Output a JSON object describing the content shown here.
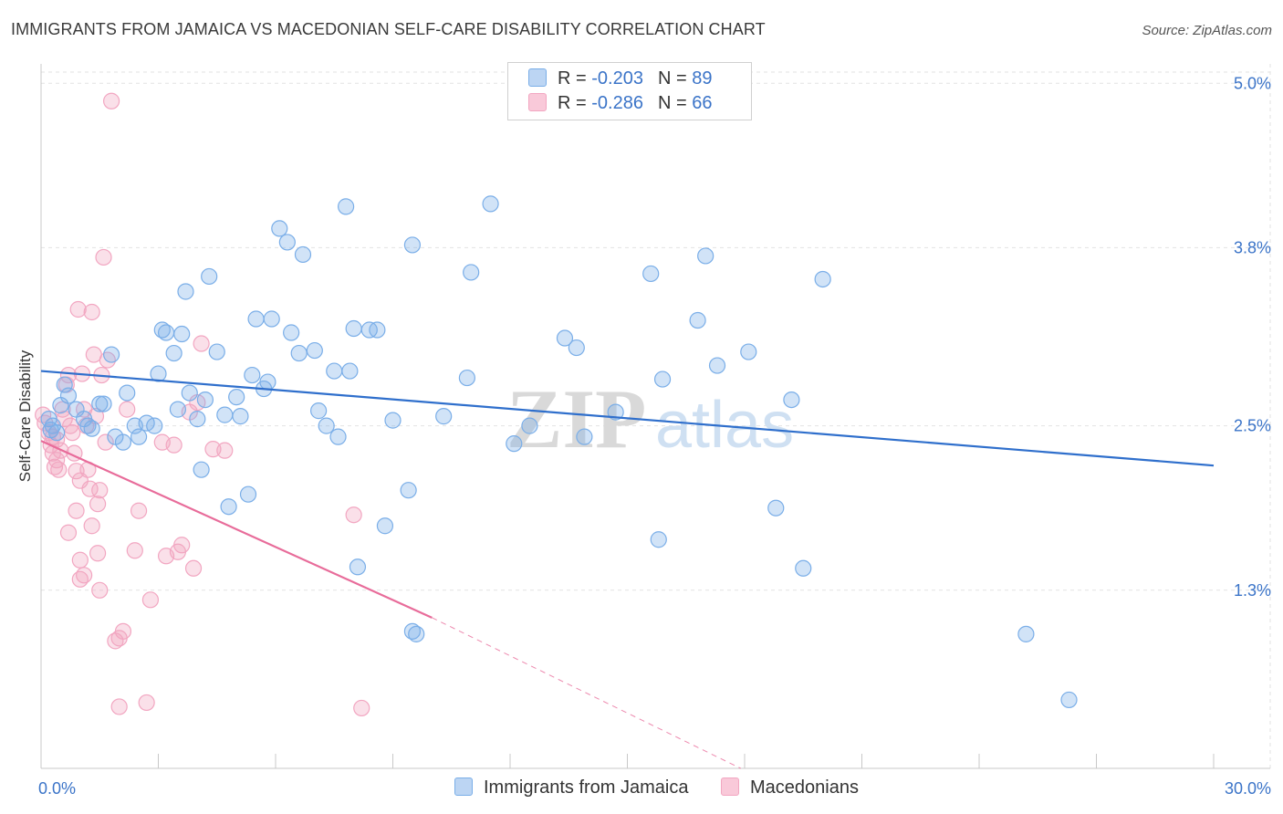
{
  "header": {
    "title": "IMMIGRANTS FROM JAMAICA VS MACEDONIAN SELF-CARE DISABILITY CORRELATION CHART",
    "source": "Source: ZipAtlas.com"
  },
  "stats_legend": [
    {
      "r_label": "R = ",
      "r_value": "-0.203",
      "n_label": "N = ",
      "n_value": "89"
    },
    {
      "r_label": "R = ",
      "r_value": "-0.286",
      "n_label": "N = ",
      "n_value": "66"
    }
  ],
  "watermark": {
    "zip": "ZIP",
    "atlas": "atlas"
  },
  "chart_data": {
    "type": "scatter",
    "title": "IMMIGRANTS FROM JAMAICA VS MACEDONIAN SELF-CARE DISABILITY CORRELATION CHART",
    "xlabel": "",
    "ylabel": "Self-Care Disability",
    "xlim": [
      0,
      30
    ],
    "ylim": [
      0,
      5.2
    ],
    "x_tick_labels": [
      {
        "value": 0,
        "label": "0.0%"
      },
      {
        "value": 30,
        "label": "30.0%"
      }
    ],
    "y_tick_labels": [
      {
        "value": 5.0,
        "label": "5.0%"
      },
      {
        "value": 3.8,
        "label": "3.8%"
      },
      {
        "value": 2.5,
        "label": "2.5%"
      },
      {
        "value": 1.3,
        "label": "1.3%"
      }
    ],
    "grid": true,
    "legend_position": "bottom-center",
    "series": [
      {
        "name": "Immigrants from Jamaica",
        "color": "#7aaee8",
        "trend": {
          "x": [
            0,
            30
          ],
          "y": [
            2.9,
            2.21
          ],
          "color": "#2f6fcc"
        },
        "points": [
          [
            0.2,
            2.55
          ],
          [
            0.3,
            2.5
          ],
          [
            0.4,
            2.45
          ],
          [
            0.5,
            2.65
          ],
          [
            0.6,
            2.8
          ],
          [
            0.7,
            2.72
          ],
          [
            0.9,
            2.62
          ],
          [
            1.1,
            2.55
          ],
          [
            1.2,
            2.5
          ],
          [
            1.3,
            2.48
          ],
          [
            1.5,
            2.66
          ],
          [
            1.6,
            2.66
          ],
          [
            1.8,
            3.02
          ],
          [
            1.9,
            2.42
          ],
          [
            2.1,
            2.38
          ],
          [
            2.2,
            2.74
          ],
          [
            2.4,
            2.5
          ],
          [
            2.5,
            2.42
          ],
          [
            2.7,
            2.52
          ],
          [
            2.9,
            2.5
          ],
          [
            3.0,
            2.88
          ],
          [
            3.1,
            3.2
          ],
          [
            3.2,
            3.18
          ],
          [
            3.4,
            3.03
          ],
          [
            3.5,
            2.62
          ],
          [
            3.6,
            3.17
          ],
          [
            3.7,
            3.48
          ],
          [
            3.8,
            2.74
          ],
          [
            4.0,
            2.55
          ],
          [
            4.1,
            2.18
          ],
          [
            4.2,
            2.69
          ],
          [
            4.3,
            3.59
          ],
          [
            4.5,
            3.04
          ],
          [
            4.7,
            2.58
          ],
          [
            4.8,
            1.91
          ],
          [
            5.0,
            2.71
          ],
          [
            5.1,
            2.57
          ],
          [
            5.3,
            2.0
          ],
          [
            5.4,
            2.87
          ],
          [
            5.5,
            3.28
          ],
          [
            5.7,
            2.77
          ],
          [
            5.8,
            2.82
          ],
          [
            5.9,
            3.28
          ],
          [
            6.1,
            3.94
          ],
          [
            6.3,
            3.84
          ],
          [
            6.4,
            3.18
          ],
          [
            6.6,
            3.03
          ],
          [
            6.7,
            3.75
          ],
          [
            7.0,
            3.05
          ],
          [
            7.1,
            2.61
          ],
          [
            7.3,
            2.5
          ],
          [
            7.5,
            2.9
          ],
          [
            7.6,
            2.42
          ],
          [
            7.8,
            4.1
          ],
          [
            7.9,
            2.9
          ],
          [
            8.0,
            3.21
          ],
          [
            8.1,
            1.47
          ],
          [
            8.4,
            3.2
          ],
          [
            8.6,
            3.2
          ],
          [
            8.8,
            1.77
          ],
          [
            9.0,
            2.54
          ],
          [
            9.4,
            2.03
          ],
          [
            9.5,
            1.0
          ],
          [
            9.6,
            0.98
          ],
          [
            9.5,
            3.82
          ],
          [
            10.3,
            2.57
          ],
          [
            10.9,
            2.85
          ],
          [
            11.0,
            3.62
          ],
          [
            11.5,
            4.12
          ],
          [
            12.1,
            2.37
          ],
          [
            12.5,
            2.5
          ],
          [
            13.4,
            3.14
          ],
          [
            13.9,
            2.42
          ],
          [
            13.7,
            3.07
          ],
          [
            14.7,
            2.6
          ],
          [
            15.6,
            3.61
          ],
          [
            15.9,
            2.84
          ],
          [
            15.8,
            1.67
          ],
          [
            16.8,
            3.27
          ],
          [
            17.0,
            3.74
          ],
          [
            17.3,
            2.94
          ],
          [
            18.1,
            3.04
          ],
          [
            18.8,
            1.9
          ],
          [
            19.2,
            2.69
          ],
          [
            19.5,
            1.46
          ],
          [
            20.0,
            3.57
          ],
          [
            25.2,
            0.98
          ],
          [
            26.3,
            0.5
          ],
          [
            0.25,
            2.47
          ]
        ]
      },
      {
        "name": "Macedonians",
        "color": "#f2a6c1",
        "trend": {
          "x": [
            0,
            10
          ],
          "y": [
            2.39,
            1.1
          ],
          "color": "#e86c9a",
          "extended_x": [
            10,
            17.9
          ],
          "extended_y": [
            1.1,
            0.0
          ]
        },
        "points": [
          [
            0.05,
            2.58
          ],
          [
            0.1,
            2.52
          ],
          [
            0.2,
            2.45
          ],
          [
            0.25,
            2.36
          ],
          [
            0.3,
            2.3
          ],
          [
            0.35,
            2.2
          ],
          [
            0.4,
            2.25
          ],
          [
            0.45,
            2.18
          ],
          [
            0.5,
            2.32
          ],
          [
            0.55,
            2.62
          ],
          [
            0.6,
            2.55
          ],
          [
            0.65,
            2.8
          ],
          [
            0.7,
            2.87
          ],
          [
            0.75,
            2.5
          ],
          [
            0.8,
            2.45
          ],
          [
            0.85,
            2.3
          ],
          [
            0.9,
            2.17
          ],
          [
            0.95,
            3.35
          ],
          [
            1.0,
            2.1
          ],
          [
            1.05,
            2.88
          ],
          [
            1.1,
            2.62
          ],
          [
            1.15,
            2.5
          ],
          [
            1.2,
            2.18
          ],
          [
            1.25,
            2.04
          ],
          [
            1.3,
            3.33
          ],
          [
            1.35,
            3.02
          ],
          [
            1.4,
            2.57
          ],
          [
            1.45,
            1.93
          ],
          [
            1.5,
            2.03
          ],
          [
            1.55,
            2.87
          ],
          [
            1.6,
            3.73
          ],
          [
            1.65,
            2.38
          ],
          [
            1.8,
            4.87
          ],
          [
            1.9,
            0.93
          ],
          [
            2.0,
            0.95
          ],
          [
            2.1,
            1.0
          ],
          [
            2.2,
            2.62
          ],
          [
            2.4,
            1.59
          ],
          [
            2.5,
            1.88
          ],
          [
            2.8,
            1.23
          ],
          [
            3.1,
            2.38
          ],
          [
            3.2,
            1.55
          ],
          [
            3.4,
            2.36
          ],
          [
            3.5,
            1.58
          ],
          [
            3.6,
            1.63
          ],
          [
            3.9,
            1.46
          ],
          [
            4.1,
            3.1
          ],
          [
            4.4,
            2.33
          ],
          [
            4.7,
            2.32
          ],
          [
            1.45,
            1.57
          ],
          [
            1.0,
            1.38
          ],
          [
            1.0,
            1.52
          ],
          [
            0.7,
            1.72
          ],
          [
            1.3,
            1.77
          ],
          [
            1.5,
            1.3
          ],
          [
            2.0,
            0.45
          ],
          [
            2.7,
            0.48
          ],
          [
            8.2,
            0.44
          ],
          [
            8.0,
            1.85
          ],
          [
            4.0,
            2.67
          ],
          [
            1.1,
            1.41
          ],
          [
            0.4,
            2.4
          ],
          [
            0.3,
            2.42
          ],
          [
            0.9,
            1.88
          ],
          [
            3.8,
            2.6
          ],
          [
            1.7,
            2.98
          ]
        ]
      }
    ]
  }
}
